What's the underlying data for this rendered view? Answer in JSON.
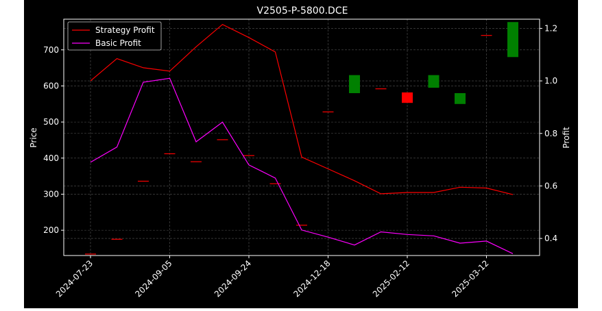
{
  "chart_data": {
    "type": "candlestick+line",
    "title": "V2505-P-5800.DCE",
    "xlabel": "",
    "ylabel_left": "Price",
    "ylabel_right": "Profit",
    "ylim_left": [
      130,
      785
    ],
    "ylim_right": [
      0.335,
      1.235
    ],
    "left_ticks": [
      200,
      300,
      400,
      500,
      600,
      700
    ],
    "right_ticks": [
      0.4,
      0.6,
      0.8,
      1.0,
      1.2
    ],
    "x_tick_labels": [
      "2024-07-23",
      "2024-09-05",
      "2024-09-24",
      "2024-12-18",
      "2025-02-12",
      "2025-03-12"
    ],
    "x_tick_index": [
      0,
      3,
      6,
      9,
      12,
      15
    ],
    "grid": true,
    "legend_position": "top-left",
    "colors": {
      "background": "#000000",
      "strategy": "#ff0000",
      "basic": "#ff00ff",
      "up": "#008000",
      "down": "#ff0000"
    },
    "candles": [
      {
        "open": 134,
        "close": 134
      },
      {
        "open": 175,
        "close": 175
      },
      {
        "open": 336,
        "close": 336
      },
      {
        "open": 412,
        "close": 412
      },
      {
        "open": 390,
        "close": 390
      },
      {
        "open": 451,
        "close": 451
      },
      {
        "open": 407,
        "close": 407
      },
      {
        "open": 329,
        "close": 329
      },
      {
        "open": 214,
        "close": 214
      },
      {
        "open": 528,
        "close": 528
      },
      {
        "open": 580,
        "close": 630
      },
      {
        "open": 592,
        "close": 592
      },
      {
        "open": 582,
        "close": 553
      },
      {
        "open": 595,
        "close": 630
      },
      {
        "open": 550,
        "close": 580
      },
      {
        "open": 740,
        "close": 740
      },
      {
        "open": 680,
        "close": 777
      }
    ],
    "series": [
      {
        "name": "Strategy Profit",
        "axis": "right",
        "color": "#ff0000",
        "values": [
          1.0,
          1.085,
          1.05,
          1.037,
          1.13,
          1.215,
          1.165,
          1.11,
          0.71,
          0.665,
          0.62,
          0.57,
          0.575,
          0.575,
          0.595,
          0.592,
          0.567
        ]
      },
      {
        "name": "Basic Profit",
        "axis": "right",
        "color": "#ff00ff",
        "values": [
          0.69,
          0.748,
          0.995,
          1.01,
          0.768,
          0.843,
          0.68,
          0.63,
          0.432,
          0.405,
          0.375,
          0.425,
          0.415,
          0.41,
          0.382,
          0.39,
          0.342
        ]
      }
    ]
  }
}
